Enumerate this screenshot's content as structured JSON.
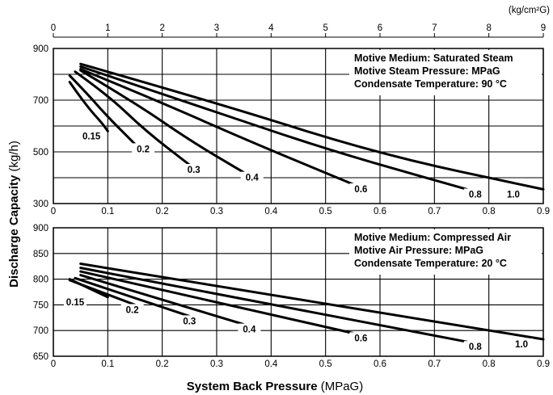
{
  "chart_data": [
    {
      "type": "line",
      "xlim": [
        0,
        0.9
      ],
      "ylim": [
        300,
        900
      ],
      "x_ticks": [
        0,
        0.1,
        0.2,
        0.3,
        0.4,
        0.5,
        0.6,
        0.7,
        0.8,
        0.9
      ],
      "x_tick_labels": [
        "0",
        "0.1",
        "0.2",
        "0.3",
        "0.4",
        "0.5",
        "0.6",
        "0.7",
        "0.8",
        "0.9"
      ],
      "y_ticks": [
        300,
        500,
        700,
        900
      ],
      "y_tick_labels": [
        "300",
        "500",
        "700",
        "900"
      ],
      "y_grid": [
        300,
        400,
        500,
        600,
        700,
        800,
        900
      ],
      "top_axis": {
        "unit": "(kg/cm²G)",
        "factor": 10,
        "ticks": [
          0,
          1,
          2,
          3,
          4,
          5,
          6,
          7,
          8,
          9
        ],
        "tick_labels": [
          "0",
          "1",
          "2",
          "3",
          "4",
          "5",
          "6",
          "7",
          "8",
          "9"
        ]
      },
      "grid": true,
      "annotation_lines": [
        "Motive Medium: Saturated Steam",
        "Motive Steam Pressure: MPaG",
        "Condensate Temperature: 90 °C"
      ],
      "series": [
        {
          "name": "0.15",
          "x": [
            0.03,
            0.06,
            0.09,
            0.1
          ],
          "y": [
            770,
            680,
            610,
            580
          ]
        },
        {
          "name": "0.2",
          "x": [
            0.03,
            0.06,
            0.1,
            0.15
          ],
          "y": [
            795,
            730,
            635,
            530
          ]
        },
        {
          "name": "0.3",
          "x": [
            0.04,
            0.1,
            0.17,
            0.25
          ],
          "y": [
            810,
            720,
            580,
            450
          ]
        },
        {
          "name": "0.4",
          "x": [
            0.05,
            0.15,
            0.25,
            0.35
          ],
          "y": [
            815,
            690,
            545,
            420
          ]
        },
        {
          "name": "0.6",
          "x": [
            0.05,
            0.2,
            0.35,
            0.55
          ],
          "y": [
            820,
            690,
            550,
            375
          ]
        },
        {
          "name": "0.8",
          "x": [
            0.05,
            0.25,
            0.5,
            0.76
          ],
          "y": [
            830,
            690,
            510,
            355
          ]
        },
        {
          "name": "1.0",
          "x": [
            0.05,
            0.3,
            0.6,
            0.9
          ],
          "y": [
            840,
            690,
            490,
            355
          ]
        }
      ],
      "label_x": {
        "0.15": 0.07,
        "0.2": 0.165,
        "0.3": 0.258,
        "0.4": 0.365,
        "0.6": 0.565,
        "0.8": 0.775,
        "1.0": 0.845
      }
    },
    {
      "type": "line",
      "xlim": [
        0,
        0.9
      ],
      "ylim": [
        650,
        900
      ],
      "x_ticks": [
        0,
        0.1,
        0.2,
        0.3,
        0.4,
        0.5,
        0.6,
        0.7,
        0.8,
        0.9
      ],
      "x_tick_labels": [
        "0",
        "0.1",
        "0.2",
        "0.3",
        "0.4",
        "0.5",
        "0.6",
        "0.7",
        "0.8",
        "0.9"
      ],
      "y_ticks": [
        650,
        700,
        750,
        800,
        850,
        900
      ],
      "y_tick_labels": [
        "650",
        "700",
        "750",
        "800",
        "850",
        "900"
      ],
      "y_grid": [
        650,
        700,
        750,
        800,
        850,
        900
      ],
      "grid": true,
      "annotation_lines": [
        "Motive Medium: Compressed Air",
        "Motive Air Pressure: MPaG",
        "Condensate Temperature: 20 °C"
      ],
      "series": [
        {
          "name": "0.15",
          "x": [
            0.03,
            0.1
          ],
          "y": [
            800,
            765
          ]
        },
        {
          "name": "0.2",
          "x": [
            0.03,
            0.15
          ],
          "y": [
            798,
            750
          ]
        },
        {
          "name": "0.3",
          "x": [
            0.04,
            0.25
          ],
          "y": [
            802,
            728
          ]
        },
        {
          "name": "0.4",
          "x": [
            0.05,
            0.35
          ],
          "y": [
            808,
            712
          ]
        },
        {
          "name": "0.6",
          "x": [
            0.05,
            0.55
          ],
          "y": [
            815,
            695
          ]
        },
        {
          "name": "0.8",
          "x": [
            0.05,
            0.76
          ],
          "y": [
            822,
            678
          ]
        },
        {
          "name": "1.0",
          "x": [
            0.05,
            0.9
          ],
          "y": [
            830,
            683
          ]
        }
      ],
      "label_x": {
        "0.15": 0.04,
        "0.2": 0.145,
        "0.3": 0.25,
        "0.4": 0.36,
        "0.6": 0.565,
        "0.8": 0.775,
        "1.0": 0.86
      }
    }
  ],
  "axes": {
    "x_title_bold": "System Back Pressure",
    "x_title_unit": " (MPaG)",
    "y_title_bold": "Discharge Capacity",
    "y_title_unit": " (kg/h)"
  }
}
